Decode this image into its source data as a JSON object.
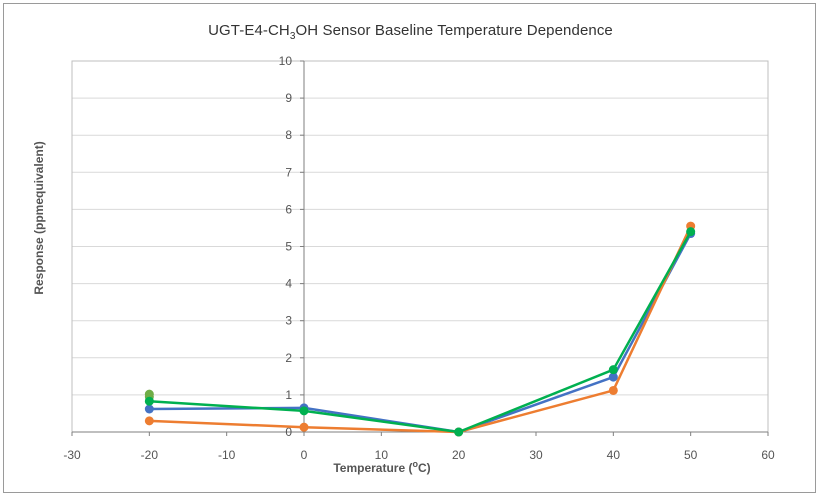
{
  "chart_data": {
    "type": "scatter",
    "title": "UGT-E4-CH",
    "title_sub": "3",
    "title_rest": "OH  Sensor Baseline Temperature  Dependence",
    "xlabel": "Temperature (",
    "xlabel_sup": "o",
    "xlabel_rest": "C)",
    "ylabel": "Response (ppmequivalent)",
    "xlim": [
      -30,
      60
    ],
    "ylim": [
      0,
      10
    ],
    "x_ticks": [
      "-30",
      "-20",
      "-10",
      "0",
      "10",
      "20",
      "30",
      "40",
      "50",
      "60"
    ],
    "y_ticks": [
      "0",
      "1",
      "2",
      "3",
      "4",
      "5",
      "6",
      "7",
      "8",
      "9",
      "10"
    ],
    "grid": true,
    "legend": "none",
    "marker": "circle",
    "series": [
      {
        "color": "#4472C4",
        "points": [
          [
            -20,
            0.62
          ],
          [
            0,
            0.65
          ],
          [
            20,
            0.0
          ],
          [
            40,
            1.48
          ],
          [
            50,
            5.35
          ]
        ]
      },
      {
        "color": "#ED7D31",
        "points": [
          [
            -20,
            0.3
          ],
          [
            0,
            0.13
          ],
          [
            20,
            0.0
          ],
          [
            40,
            1.12
          ],
          [
            50,
            5.55
          ]
        ]
      },
      {
        "color": "#00B050",
        "points": [
          [
            -20,
            0.83
          ],
          [
            0,
            0.57
          ],
          [
            20,
            0.0
          ],
          [
            40,
            1.68
          ],
          [
            50,
            5.4
          ]
        ]
      }
    ],
    "extra_points": [
      {
        "color": "#70AD47",
        "points": [
          [
            -20,
            1.02
          ],
          [
            -20,
            0.95
          ]
        ]
      }
    ]
  }
}
